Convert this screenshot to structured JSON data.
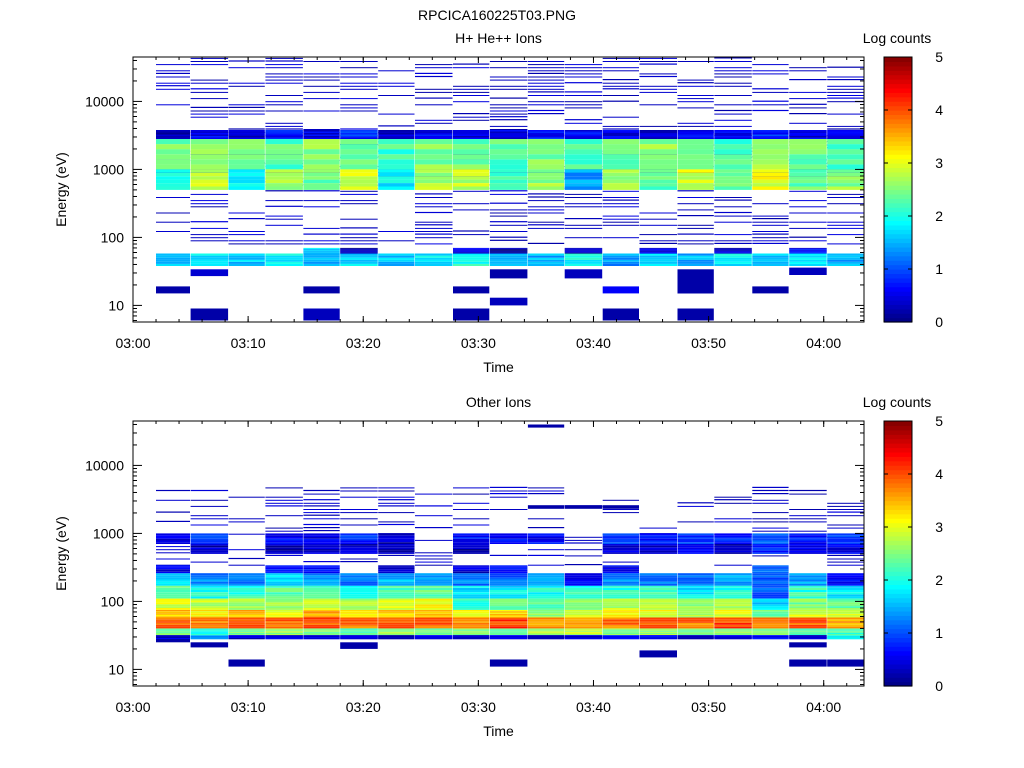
{
  "figure_title": "RPCICA160225T03.PNG",
  "colormap": [
    "#00007f",
    "#0000ff",
    "#007fff",
    "#00ffff",
    "#7fff7f",
    "#ffff00",
    "#ff7f00",
    "#ff0000",
    "#7f0000"
  ],
  "chart_data": [
    {
      "type": "heatmap",
      "title": "H+ He++ Ions",
      "xlabel": "Time",
      "ylabel": "Energy (eV)",
      "x_tick_labels": [
        "03:00",
        "03:10",
        "03:20",
        "03:30",
        "03:40",
        "03:50",
        "04:00"
      ],
      "x_ticks_minutes": [
        0,
        10,
        20,
        30,
        40,
        50,
        60
      ],
      "x_range_minutes": [
        0,
        63.5
      ],
      "y_scale": "log",
      "y_tick_labels": [
        "10",
        "100",
        "1000",
        "10000"
      ],
      "y_ticks": [
        10,
        100,
        1000,
        10000
      ],
      "y_range": [
        5.7,
        45000
      ],
      "colorbar_label": "Log counts",
      "colorbar_ticks": [
        "0",
        "1",
        "2",
        "3",
        "4",
        "5"
      ],
      "colorbar_range": [
        0,
        5
      ],
      "time_bins_minutes": [
        [
          2.0,
          5.0
        ],
        [
          5.0,
          8.3
        ],
        [
          8.3,
          11.5
        ],
        [
          11.5,
          14.8
        ],
        [
          14.8,
          18.0
        ],
        [
          18.0,
          21.3
        ],
        [
          21.3,
          24.5
        ],
        [
          24.5,
          27.8
        ],
        [
          27.8,
          31.0
        ],
        [
          31.0,
          34.3
        ],
        [
          34.3,
          37.5
        ],
        [
          37.5,
          40.8
        ],
        [
          40.8,
          44.0
        ],
        [
          44.0,
          47.3
        ],
        [
          47.3,
          50.5
        ],
        [
          50.5,
          53.8
        ],
        [
          53.8,
          57.0
        ],
        [
          57.0,
          60.3
        ],
        [
          60.3,
          63.5
        ]
      ],
      "bands": [
        {
          "e_low": 1000,
          "e_high": 2800,
          "level": [
            2.4,
            2.6,
            2.5,
            2.3,
            2.6,
            2.4,
            2.2,
            2.5,
            2.4,
            2.3,
            2.5,
            2.2,
            2.4,
            2.6,
            2.4,
            2.2,
            2.7,
            2.4,
            2.3
          ]
        },
        {
          "e_low": 500,
          "e_high": 1000,
          "level": [
            2.0,
            2.9,
            1.9,
            2.7,
            2.4,
            2.9,
            1.8,
            2.7,
            2.8,
            2.3,
            2.6,
            1.4,
            2.6,
            2.3,
            2.9,
            2.4,
            3.0,
            2.4,
            2.6
          ]
        },
        {
          "e_low": 2800,
          "e_high": 3800,
          "level": [
            0.3,
            0.6,
            0.4,
            0.7,
            0.5,
            0.8,
            0.4,
            0.6,
            0.4,
            0.5,
            0.7,
            0.6,
            0.5,
            0.4,
            0.6,
            0.5,
            0.8,
            0.5,
            0.7
          ]
        },
        {
          "e_low": 38,
          "e_high": 58,
          "level": [
            1.6,
            1.8,
            1.6,
            1.9,
            1.5,
            1.7,
            1.6,
            1.8,
            2.0,
            1.6,
            1.5,
            1.9,
            1.4,
            1.7,
            1.5,
            1.8,
            1.6,
            1.7,
            1.5
          ]
        },
        {
          "e_low": 58,
          "e_high": 70,
          "level": [
            0.0,
            0.0,
            0.0,
            0.0,
            1.7,
            0.3,
            0.0,
            0.0,
            0.5,
            0.2,
            0.0,
            0.3,
            0.0,
            0.5,
            0.0,
            0.4,
            0.0,
            0.6,
            0.0
          ]
        }
      ],
      "sparse": {
        "e_low": 80,
        "e_high": 45000,
        "lines_per_decade": 22,
        "probability": [
          0.35,
          0.5,
          0.4,
          0.45,
          0.4,
          0.5,
          0.35,
          0.45,
          0.5,
          0.55,
          0.5,
          0.45,
          0.45,
          0.4,
          0.45,
          0.5,
          0.4,
          0.45,
          0.5
        ],
        "level": 0.2
      },
      "low_energy_blocks": [
        {
          "bin": 0,
          "e_low": 15,
          "e_high": 19,
          "level": 0.2
        },
        {
          "bin": 1,
          "e_low": 6,
          "e_high": 9,
          "level": 0.2
        },
        {
          "bin": 1,
          "e_low": 27,
          "e_high": 34,
          "level": 0.4
        },
        {
          "bin": 4,
          "e_low": 6,
          "e_high": 9,
          "level": 0.3
        },
        {
          "bin": 4,
          "e_low": 15,
          "e_high": 19,
          "level": 0.2
        },
        {
          "bin": 8,
          "e_low": 6,
          "e_high": 9,
          "level": 0.2
        },
        {
          "bin": 8,
          "e_low": 15,
          "e_high": 19,
          "level": 0.2
        },
        {
          "bin": 9,
          "e_low": 10,
          "e_high": 13,
          "level": 0.3
        },
        {
          "bin": 9,
          "e_low": 25,
          "e_high": 34,
          "level": 0.2
        },
        {
          "bin": 11,
          "e_low": 25,
          "e_high": 34,
          "level": 0.3
        },
        {
          "bin": 12,
          "e_low": 15,
          "e_high": 19,
          "level": 0.6
        },
        {
          "bin": 12,
          "e_low": 6,
          "e_high": 9,
          "level": 0.2
        },
        {
          "bin": 14,
          "e_low": 6,
          "e_high": 9,
          "level": 0.2
        },
        {
          "bin": 14,
          "e_low": 15,
          "e_high": 34,
          "level": 0.2
        },
        {
          "bin": 16,
          "e_low": 15,
          "e_high": 19,
          "level": 0.2
        },
        {
          "bin": 17,
          "e_low": 28,
          "e_high": 36,
          "level": 0.3
        }
      ]
    },
    {
      "type": "heatmap",
      "title": "Other Ions",
      "xlabel": "Time",
      "ylabel": "Energy (eV)",
      "x_tick_labels": [
        "03:00",
        "03:10",
        "03:20",
        "03:30",
        "03:40",
        "03:50",
        "04:00"
      ],
      "x_ticks_minutes": [
        0,
        10,
        20,
        30,
        40,
        50,
        60
      ],
      "x_range_minutes": [
        0,
        63.5
      ],
      "y_scale": "log",
      "y_tick_labels": [
        "10",
        "100",
        "1000",
        "10000"
      ],
      "y_ticks": [
        10,
        100,
        1000,
        10000
      ],
      "y_range": [
        5.7,
        45000
      ],
      "colorbar_label": "Log counts",
      "colorbar_ticks": [
        "0",
        "1",
        "2",
        "3",
        "4",
        "5"
      ],
      "colorbar_range": [
        0,
        5
      ],
      "time_bins_minutes": [
        [
          2.0,
          5.0
        ],
        [
          5.0,
          8.3
        ],
        [
          8.3,
          11.5
        ],
        [
          11.5,
          14.8
        ],
        [
          14.8,
          18.0
        ],
        [
          18.0,
          21.3
        ],
        [
          21.3,
          24.5
        ],
        [
          24.5,
          27.8
        ],
        [
          27.8,
          31.0
        ],
        [
          31.0,
          34.3
        ],
        [
          34.3,
          37.5
        ],
        [
          37.5,
          40.8
        ],
        [
          40.8,
          44.0
        ],
        [
          44.0,
          47.3
        ],
        [
          47.3,
          50.5
        ],
        [
          50.5,
          53.8
        ],
        [
          53.8,
          57.0
        ],
        [
          57.0,
          60.3
        ],
        [
          60.3,
          63.5
        ]
      ],
      "bands": [
        {
          "e_low": 40,
          "e_high": 58,
          "level": [
            3.9,
            3.8,
            4.1,
            3.9,
            4.0,
            3.8,
            4.0,
            3.9,
            3.8,
            4.1,
            3.6,
            3.5,
            3.8,
            4.0,
            3.8,
            4.1,
            3.7,
            3.9,
            3.6
          ]
        },
        {
          "e_low": 58,
          "e_high": 75,
          "level": [
            3.4,
            3.2,
            3.4,
            3.0,
            3.6,
            3.3,
            3.4,
            3.5,
            3.0,
            3.3,
            2.6,
            3.0,
            3.2,
            3.0,
            2.8,
            3.0,
            2.4,
            3.0,
            2.9
          ]
        },
        {
          "e_low": 75,
          "e_high": 110,
          "level": [
            3.0,
            2.8,
            2.7,
            2.6,
            3.0,
            2.7,
            3.0,
            3.1,
            2.1,
            2.4,
            2.4,
            2.6,
            2.8,
            2.9,
            2.5,
            2.7,
            1.7,
            2.5,
            2.4
          ]
        },
        {
          "e_low": 110,
          "e_high": 170,
          "level": [
            2.3,
            2.0,
            2.1,
            2.3,
            2.2,
            2.0,
            2.3,
            2.4,
            1.8,
            1.8,
            2.0,
            2.1,
            2.1,
            2.2,
            1.8,
            2.0,
            1.1,
            2.1,
            1.8
          ]
        },
        {
          "e_low": 170,
          "e_high": 260,
          "level": [
            1.6,
            1.3,
            1.1,
            1.7,
            1.4,
            1.2,
            1.5,
            1.5,
            1.2,
            1.1,
            1.5,
            0.6,
            1.3,
            1.3,
            1.1,
            1.4,
            1.1,
            1.4,
            0.7
          ]
        },
        {
          "e_low": 260,
          "e_high": 340,
          "level": [
            0.5,
            0.0,
            0.0,
            0.8,
            0.7,
            0.0,
            0.5,
            0.0,
            0.4,
            0.6,
            0.0,
            0.0,
            0.6,
            0.0,
            0.0,
            0.0,
            1.1,
            0.0,
            0.0
          ]
        },
        {
          "e_low": 32,
          "e_high": 40,
          "level": [
            2.4,
            2.0,
            2.5,
            2.6,
            2.4,
            2.3,
            2.6,
            2.3,
            2.5,
            2.4,
            2.7,
            2.8,
            2.5,
            2.6,
            2.4,
            2.6,
            2.5,
            2.3,
            2.2
          ]
        },
        {
          "e_low": 28,
          "e_high": 32,
          "level": [
            0.4,
            1.3,
            0.4,
            0.5,
            0.5,
            0.4,
            0.2,
            0.5,
            0.4,
            0.5,
            0.3,
            0.4,
            0.6,
            0.6,
            0.3,
            0.4,
            0.5,
            0.4,
            1.9
          ]
        },
        {
          "e_low": 700,
          "e_high": 1000,
          "level": [
            0.4,
            0.9,
            0.0,
            0.6,
            0.5,
            0.8,
            0.3,
            0.0,
            0.7,
            0.6,
            0.6,
            0.0,
            0.9,
            0.8,
            0.9,
            0.8,
            1.1,
            0.7,
            0.9
          ]
        },
        {
          "e_low": 500,
          "e_high": 700,
          "level": [
            0.0,
            0.3,
            0.0,
            0.3,
            0.4,
            0.4,
            0.3,
            0.0,
            0.2,
            0.0,
            0.0,
            0.0,
            0.4,
            0.3,
            0.6,
            0.3,
            0.8,
            0.5,
            0.5
          ]
        }
      ],
      "sparse": {
        "e_low": 340,
        "e_high": 5000,
        "lines_per_decade": 22,
        "probability": [
          0.35,
          0.25,
          0.3,
          0.35,
          0.45,
          0.3,
          0.4,
          0.3,
          0.3,
          0.35,
          0.25,
          0.25,
          0.3,
          0.2,
          0.2,
          0.25,
          0.35,
          0.3,
          0.3
        ],
        "level": 0.2
      },
      "low_energy_blocks": [
        {
          "bin": 0,
          "e_low": 25,
          "e_high": 28,
          "level": 0.2
        },
        {
          "bin": 1,
          "e_low": 21,
          "e_high": 25,
          "level": 0.2
        },
        {
          "bin": 2,
          "e_low": 11,
          "e_high": 14,
          "level": 0.2
        },
        {
          "bin": 5,
          "e_low": 20,
          "e_high": 25,
          "level": 0.2
        },
        {
          "bin": 9,
          "e_low": 11,
          "e_high": 14,
          "level": 0.2
        },
        {
          "bin": 13,
          "e_low": 15,
          "e_high": 19,
          "level": 0.2
        },
        {
          "bin": 17,
          "e_low": 11,
          "e_high": 14,
          "level": 0.2
        },
        {
          "bin": 18,
          "e_low": 11,
          "e_high": 14,
          "level": 0.2
        },
        {
          "bin": 17,
          "e_low": 21,
          "e_high": 25,
          "level": 0.2
        },
        {
          "bin": 10,
          "e_low": 36000,
          "e_high": 40000,
          "level": 0.2
        },
        {
          "bin": 10,
          "e_low": 2300,
          "e_high": 2600,
          "level": 0.2
        },
        {
          "bin": 11,
          "e_low": 2300,
          "e_high": 2600,
          "level": 0.2
        },
        {
          "bin": 12,
          "e_low": 2300,
          "e_high": 2600,
          "level": 0.2
        }
      ]
    }
  ]
}
